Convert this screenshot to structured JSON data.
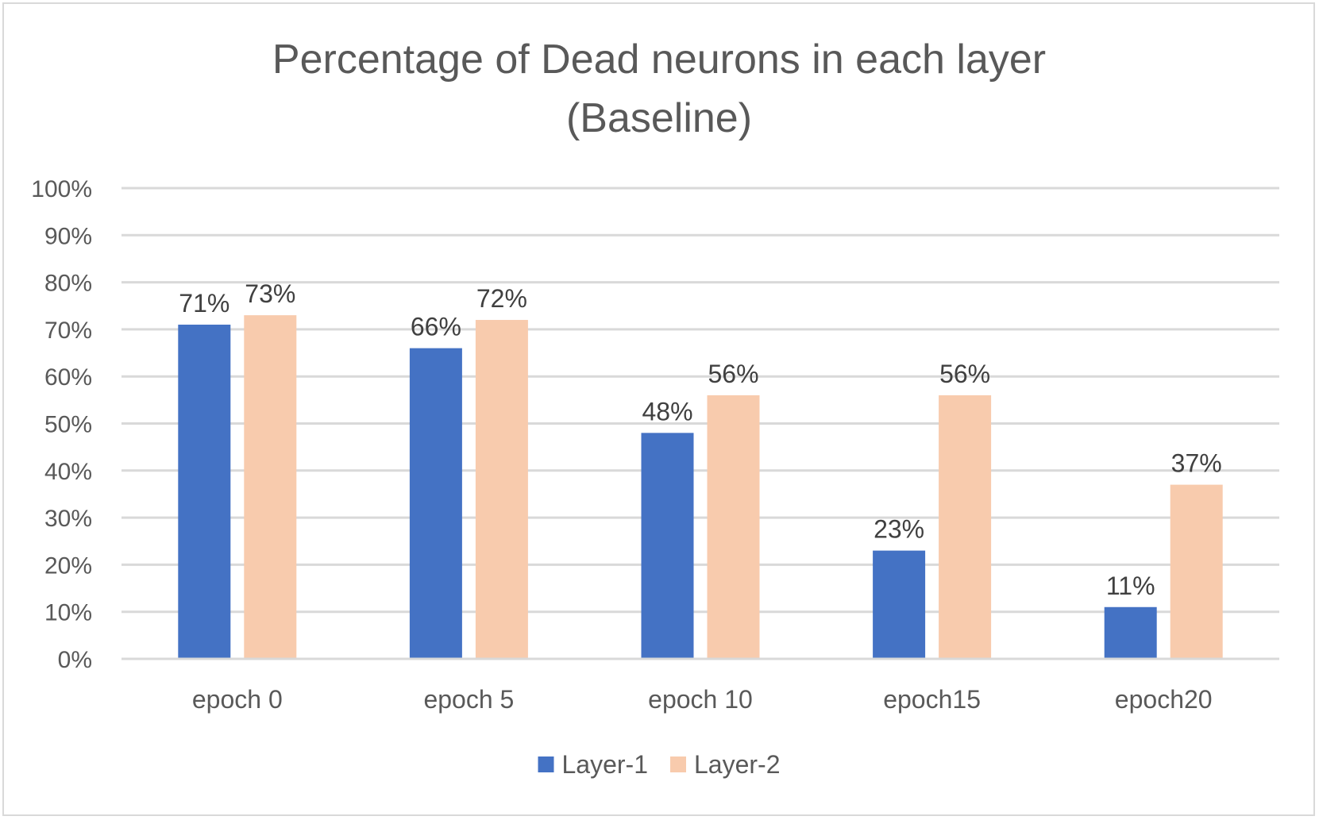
{
  "chart_data": {
    "type": "bar",
    "title_lines": [
      "Percentage of Dead neurons in each layer",
      "(Baseline)"
    ],
    "xlabel": "",
    "ylabel": "",
    "categories": [
      "epoch 0",
      "epoch 5",
      "epoch 10",
      "epoch15",
      "epoch20"
    ],
    "series": [
      {
        "name": "Layer-1",
        "color": "#4472C4",
        "values": [
          71,
          66,
          48,
          23,
          11
        ],
        "labels": [
          "71%",
          "66%",
          "48%",
          "23%",
          "11%"
        ]
      },
      {
        "name": "Layer-2",
        "color": "#F8CBAD",
        "values": [
          73,
          72,
          56,
          56,
          37
        ],
        "labels": [
          "73%",
          "72%",
          "56%",
          "56%",
          "37%"
        ]
      }
    ],
    "ylim": [
      0,
      100
    ],
    "yticks": [
      0,
      10,
      20,
      30,
      40,
      50,
      60,
      70,
      80,
      90,
      100
    ],
    "ytick_labels": [
      "0%",
      "10%",
      "20%",
      "30%",
      "40%",
      "50%",
      "60%",
      "70%",
      "80%",
      "90%",
      "100%"
    ],
    "grid": true,
    "gridline_color": "#d9d9d9",
    "legend_position": "bottom"
  }
}
